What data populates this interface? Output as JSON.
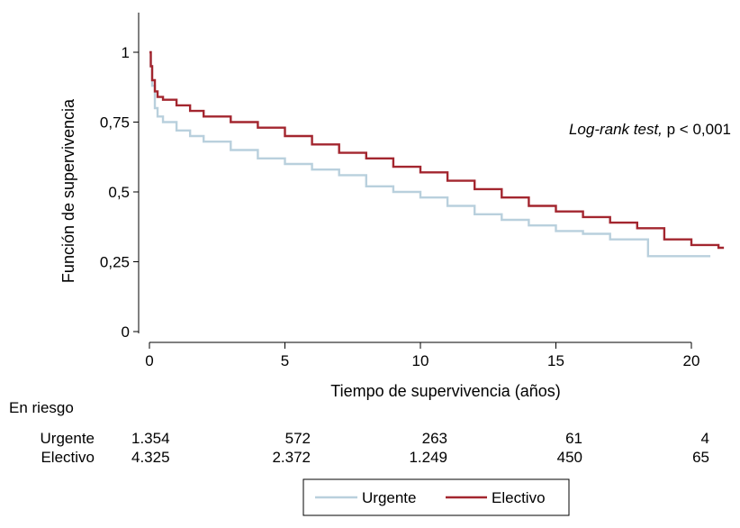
{
  "chart_data": {
    "type": "line",
    "title": "",
    "xlabel": "Tiempo de supervivencia (años)",
    "ylabel": "Función de supervivencia",
    "xlim": [
      0,
      21
    ],
    "ylim": [
      0,
      1
    ],
    "x_ticks": [
      0,
      5,
      10,
      15,
      20
    ],
    "y_ticks": [
      0,
      0.25,
      0.5,
      0.75,
      1
    ],
    "y_tick_labels": [
      "0",
      "0,25",
      "0,5",
      "0,75",
      "1"
    ],
    "x_tick_labels": [
      "0",
      "5",
      "10",
      "15",
      "20"
    ],
    "grid": false,
    "legend_position": "bottom",
    "annotation": {
      "italic": "Log-rank test,",
      "normal": " p < 0,001"
    },
    "series": [
      {
        "name": "Urgente",
        "color": "#b9d0dd",
        "step": true,
        "x": [
          0,
          0.05,
          0.1,
          0.2,
          0.3,
          0.5,
          1,
          1.5,
          2,
          3,
          4,
          5,
          6,
          7,
          8,
          9,
          10,
          11,
          12,
          13,
          14,
          15,
          16,
          17,
          18,
          18.4,
          19,
          20,
          20.7
        ],
        "y": [
          1.0,
          0.95,
          0.88,
          0.8,
          0.77,
          0.75,
          0.72,
          0.7,
          0.68,
          0.65,
          0.62,
          0.6,
          0.58,
          0.56,
          0.52,
          0.5,
          0.48,
          0.45,
          0.42,
          0.4,
          0.38,
          0.36,
          0.35,
          0.33,
          0.33,
          0.27,
          0.27,
          0.27,
          0.27
        ]
      },
      {
        "name": "Electivo",
        "color": "#a3262f",
        "step": true,
        "x": [
          0,
          0.05,
          0.1,
          0.2,
          0.3,
          0.5,
          1,
          1.5,
          2,
          3,
          4,
          5,
          6,
          7,
          8,
          9,
          10,
          11,
          12,
          13,
          14,
          15,
          16,
          17,
          18,
          19,
          20,
          21,
          21.2
        ],
        "y": [
          1.0,
          0.95,
          0.9,
          0.86,
          0.84,
          0.83,
          0.81,
          0.79,
          0.77,
          0.75,
          0.73,
          0.7,
          0.67,
          0.64,
          0.62,
          0.59,
          0.57,
          0.54,
          0.51,
          0.48,
          0.45,
          0.43,
          0.41,
          0.39,
          0.37,
          0.33,
          0.31,
          0.3,
          0.3
        ]
      }
    ]
  },
  "risk_table": {
    "title": "En riesgo",
    "rows": [
      {
        "label": "Urgente",
        "values": [
          "1.354",
          "572",
          "263",
          "61",
          "4"
        ]
      },
      {
        "label": "Electivo",
        "values": [
          "4.325",
          "2.372",
          "1.249",
          "450",
          "65"
        ]
      }
    ]
  },
  "legend": {
    "items": [
      {
        "label": "Urgente",
        "color": "#b9d0dd"
      },
      {
        "label": "Electivo",
        "color": "#a3262f"
      }
    ]
  }
}
